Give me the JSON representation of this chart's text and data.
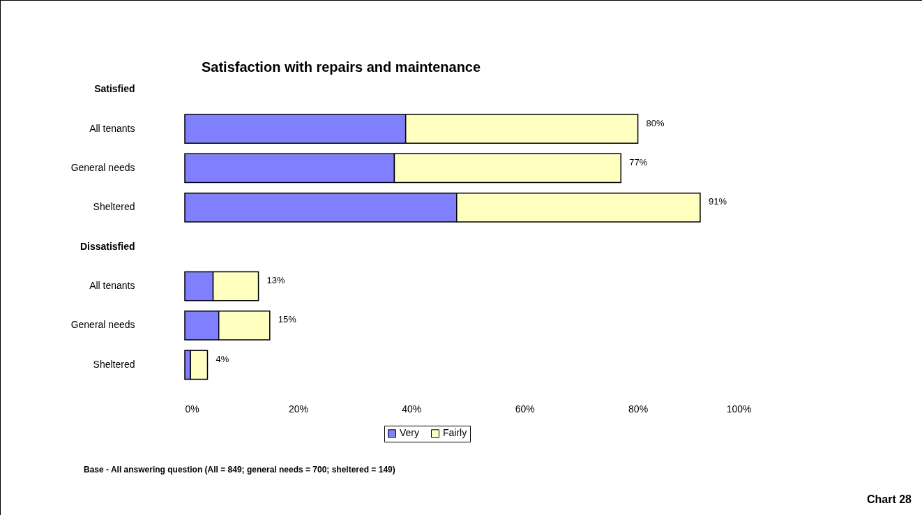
{
  "chart_data": {
    "type": "bar",
    "title": "Satisfaction with repairs and maintenance",
    "orientation": "horizontal",
    "stacked": true,
    "categories": [
      "Satisfied",
      "All tenants",
      "General needs",
      "Sheltered",
      "Dissatisfied",
      "All tenants",
      "General needs",
      "Sheltered"
    ],
    "series": [
      {
        "name": "Very",
        "color": "#8080ff",
        "values": [
          null,
          39,
          37,
          48,
          null,
          5,
          6,
          1
        ]
      },
      {
        "name": "Fairly",
        "color": "#ffffc0",
        "values": [
          null,
          41,
          40,
          43,
          null,
          8,
          9,
          3
        ]
      }
    ],
    "totals": [
      null,
      "80%",
      "77%",
      "91%",
      null,
      "13%",
      "15%",
      "4%"
    ],
    "xlim": [
      0,
      100
    ],
    "xticks": [
      {
        "value": 0,
        "label": "0%"
      },
      {
        "value": 20,
        "label": "20%"
      },
      {
        "value": 40,
        "label": "40%"
      },
      {
        "value": 60,
        "label": "60%"
      },
      {
        "value": 80,
        "label": "80%"
      },
      {
        "value": 100,
        "label": "100%"
      }
    ],
    "grid": false,
    "legend": "bottom",
    "annotations": [
      "Base - All answering question (All = 849; general needs = 700; sheltered = 149)",
      "Chart 28"
    ]
  }
}
